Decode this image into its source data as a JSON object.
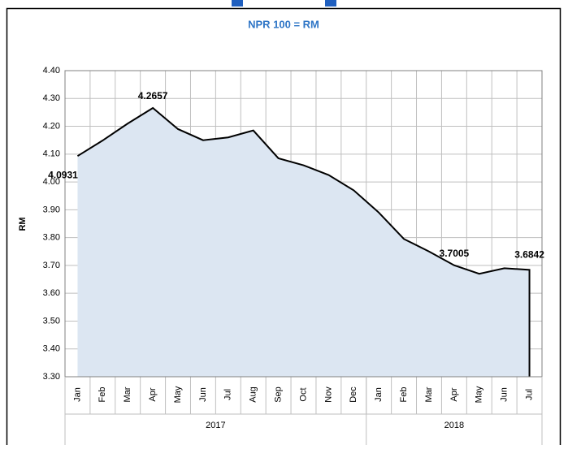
{
  "chart_data": {
    "type": "area",
    "title": "NPR 100 = RM",
    "ylabel": "RM",
    "categories": [
      "Jan",
      "Feb",
      "Mar",
      "Apr",
      "May",
      "Jun",
      "Jul",
      "Aug",
      "Sep",
      "Oct",
      "Nov",
      "Dec",
      "Jan",
      "Feb",
      "Mar",
      "Apr",
      "May",
      "Jun",
      "Jul"
    ],
    "groups": [
      {
        "label": "2017",
        "count": 12
      },
      {
        "label": "2018",
        "count": 7
      }
    ],
    "values": [
      4.0931,
      4.149,
      4.21,
      4.2657,
      4.19,
      4.15,
      4.16,
      4.185,
      4.085,
      4.06,
      4.025,
      3.97,
      3.89,
      3.795,
      3.75,
      3.7005,
      3.67,
      3.69,
      3.6842
    ],
    "value_labels": [
      "4.0931",
      null,
      null,
      "4.2657",
      null,
      null,
      null,
      null,
      null,
      null,
      null,
      null,
      null,
      null,
      null,
      "3.7005",
      null,
      null,
      "3.6842"
    ],
    "color": "#dce6f2",
    "line_color": "#000000",
    "ylim": [
      3.3,
      4.4
    ],
    "yticks": [
      {
        "value": 3.3,
        "label": "3.30"
      },
      {
        "value": 3.4,
        "label": "3.40"
      },
      {
        "value": 3.5,
        "label": "3.50"
      },
      {
        "value": 3.6,
        "label": "3.60"
      },
      {
        "value": 3.7,
        "label": "3.70"
      },
      {
        "value": 3.8,
        "label": "3.80"
      },
      {
        "value": 3.9,
        "label": "3.90"
      },
      {
        "value": 4.0,
        "label": "4.00"
      },
      {
        "value": 4.1,
        "label": "4.10"
      },
      {
        "value": 4.2,
        "label": "4.20"
      },
      {
        "value": 4.3,
        "label": "4.30"
      },
      {
        "value": 4.4,
        "label": "4.40"
      }
    ],
    "grid": true
  }
}
